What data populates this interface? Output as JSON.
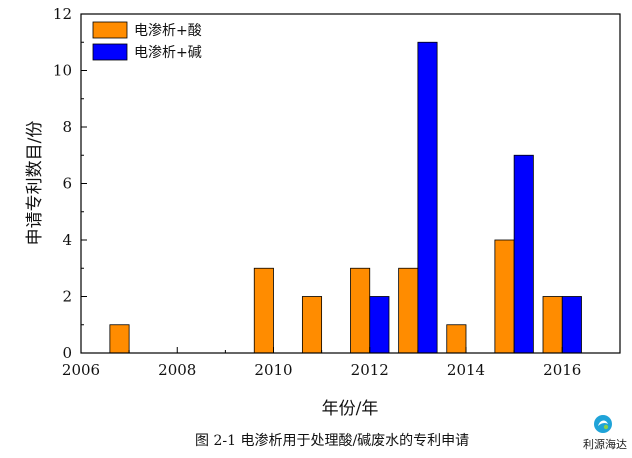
{
  "chart_data": {
    "type": "bar",
    "title": "",
    "xlabel": "年份/年",
    "ylabel": "申请专利数目/份",
    "xlim": [
      2006,
      2017.2
    ],
    "ylim": [
      0,
      12
    ],
    "x_ticks": [
      "2006",
      "2008",
      "2010",
      "2012",
      "2014",
      "2016"
    ],
    "y_ticks": [
      "0",
      "2",
      "4",
      "6",
      "8",
      "10",
      "12"
    ],
    "legend_position": "top-left",
    "grid": false,
    "series": [
      {
        "name": "电渗析+酸",
        "color": "#ff8c00",
        "x": [
          2007,
          2010,
          2011,
          2012,
          2013,
          2014,
          2015,
          2016
        ],
        "values": [
          1,
          3,
          2,
          3,
          3,
          1,
          4,
          2
        ]
      },
      {
        "name": "电渗析+碱",
        "color": "#0000ff",
        "x": [
          2012,
          2013,
          2015,
          2016
        ],
        "values": [
          2,
          11,
          7,
          2
        ]
      }
    ]
  },
  "caption": "图 2-1  电渗析用于处理酸/碱废水的专利申请",
  "logo": {
    "text": "利源海达",
    "icon": "water-drop-logo-icon"
  }
}
